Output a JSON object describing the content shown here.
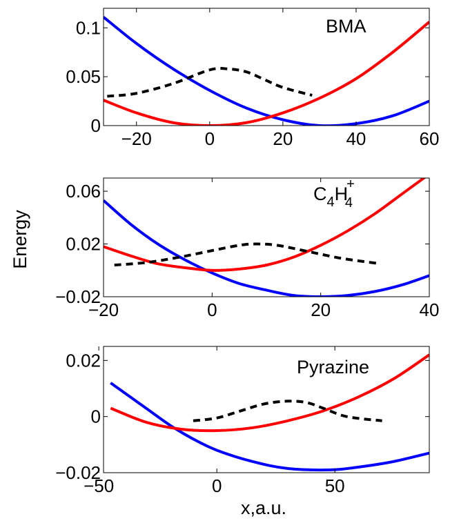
{
  "figure": {
    "ylabel": "Energy",
    "xlabel": "x,a.u."
  },
  "chart_data": [
    {
      "type": "line",
      "label": "BMA",
      "xlim": [
        -29,
        60
      ],
      "ylim": [
        0,
        0.12
      ],
      "xticks": [
        -20,
        0,
        20,
        40,
        60
      ],
      "xtick_labels": [
        "−20",
        "0",
        "20",
        "40",
        "60"
      ],
      "yticks": [
        0,
        0.05,
        0.1
      ],
      "ytick_labels": [
        "0",
        "0.05",
        "0.1"
      ],
      "series": [
        {
          "color": "#0000ff",
          "style": "solid",
          "points": [
            [
              -29,
              0.111
            ],
            [
              -20,
              0.084
            ],
            [
              -10,
              0.058
            ],
            [
              0,
              0.036
            ],
            [
              10,
              0.018
            ],
            [
              20,
              0.006
            ],
            [
              30,
              0.0
            ],
            [
              40,
              0.002
            ],
            [
              50,
              0.01
            ],
            [
              60,
              0.025
            ]
          ]
        },
        {
          "color": "#ff0000",
          "style": "solid",
          "points": [
            [
              -29,
              0.026
            ],
            [
              -20,
              0.013
            ],
            [
              -10,
              0.003
            ],
            [
              0,
              0.0
            ],
            [
              10,
              0.003
            ],
            [
              20,
              0.013
            ],
            [
              30,
              0.028
            ],
            [
              40,
              0.048
            ],
            [
              50,
              0.075
            ],
            [
              60,
              0.106
            ]
          ]
        },
        {
          "color": "#000000",
          "style": "dashed",
          "points": [
            [
              -28,
              0.03
            ],
            [
              -20,
              0.033
            ],
            [
              -10,
              0.043
            ],
            [
              0,
              0.057
            ],
            [
              5,
              0.058
            ],
            [
              10,
              0.055
            ],
            [
              15,
              0.047
            ],
            [
              20,
              0.039
            ],
            [
              28,
              0.031
            ]
          ]
        }
      ]
    },
    {
      "type": "line",
      "label_main": "C",
      "label_sub1": "4",
      "label_mid": "H",
      "label_sub2": "4",
      "label_sup": "+",
      "xlim": [
        -20,
        40
      ],
      "ylim": [
        -0.02,
        0.07
      ],
      "xticks": [
        -20,
        0,
        20,
        40
      ],
      "xtick_labels": [
        "−20",
        "0",
        "20",
        "40"
      ],
      "yticks": [
        -0.02,
        0.02,
        0.06
      ],
      "ytick_labels": [
        "−0.02",
        "0.02",
        "0.06"
      ],
      "series": [
        {
          "color": "#0000ff",
          "style": "solid",
          "points": [
            [
              -20,
              0.053
            ],
            [
              -15,
              0.035
            ],
            [
              -10,
              0.02
            ],
            [
              -5,
              0.008
            ],
            [
              0,
              -0.002
            ],
            [
              5,
              -0.01
            ],
            [
              10,
              -0.015
            ],
            [
              15,
              -0.019
            ],
            [
              20,
              -0.02
            ],
            [
              25,
              -0.019
            ],
            [
              30,
              -0.016
            ],
            [
              35,
              -0.011
            ],
            [
              40,
              -0.004
            ]
          ]
        },
        {
          "color": "#ff0000",
          "style": "solid",
          "points": [
            [
              -20,
              0.018
            ],
            [
              -15,
              0.011
            ],
            [
              -10,
              0.005
            ],
            [
              -5,
              0.002
            ],
            [
              0,
              0.0
            ],
            [
              5,
              0.001
            ],
            [
              10,
              0.004
            ],
            [
              15,
              0.01
            ],
            [
              20,
              0.019
            ],
            [
              25,
              0.03
            ],
            [
              30,
              0.043
            ],
            [
              35,
              0.058
            ],
            [
              40,
              0.073
            ]
          ]
        },
        {
          "color": "#000000",
          "style": "dashed",
          "points": [
            [
              -18,
              0.004
            ],
            [
              -12,
              0.006
            ],
            [
              -6,
              0.01
            ],
            [
              0,
              0.015
            ],
            [
              5,
              0.019
            ],
            [
              8,
              0.02
            ],
            [
              12,
              0.019
            ],
            [
              18,
              0.014
            ],
            [
              24,
              0.009
            ],
            [
              31,
              0.005
            ]
          ]
        }
      ]
    },
    {
      "type": "line",
      "label": "Pyrazine",
      "xlim": [
        -48,
        90
      ],
      "ylim": [
        -0.02,
        0.025
      ],
      "xticks": [
        -50,
        0,
        50
      ],
      "xtick_labels": [
        "−50",
        "0",
        "50"
      ],
      "yticks": [
        -0.02,
        0,
        0.02
      ],
      "ytick_labels": [
        "−0.02",
        "0",
        "0.02"
      ],
      "series": [
        {
          "color": "#0000ff",
          "style": "solid",
          "points": [
            [
              -45,
              0.012
            ],
            [
              -30,
              0.003
            ],
            [
              -20,
              -0.003
            ],
            [
              -10,
              -0.008
            ],
            [
              0,
              -0.012
            ],
            [
              15,
              -0.016
            ],
            [
              30,
              -0.0185
            ],
            [
              48,
              -0.019
            ],
            [
              60,
              -0.018
            ],
            [
              75,
              -0.016
            ],
            [
              90,
              -0.013
            ]
          ]
        },
        {
          "color": "#ff0000",
          "style": "solid",
          "points": [
            [
              -45,
              0.003
            ],
            [
              -30,
              -0.002
            ],
            [
              -15,
              -0.0045
            ],
            [
              0,
              -0.005
            ],
            [
              15,
              -0.004
            ],
            [
              30,
              -0.0015
            ],
            [
              45,
              0.002
            ],
            [
              60,
              0.007
            ],
            [
              75,
              0.0135
            ],
            [
              90,
              0.022
            ]
          ]
        },
        {
          "color": "#000000",
          "style": "dashed",
          "points": [
            [
              -10,
              -0.0015
            ],
            [
              0,
              -0.0005
            ],
            [
              10,
              0.002
            ],
            [
              20,
              0.0045
            ],
            [
              30,
              0.0055
            ],
            [
              38,
              0.005
            ],
            [
              45,
              0.003
            ],
            [
              55,
              0.0
            ],
            [
              70,
              -0.0015
            ]
          ]
        }
      ]
    }
  ]
}
